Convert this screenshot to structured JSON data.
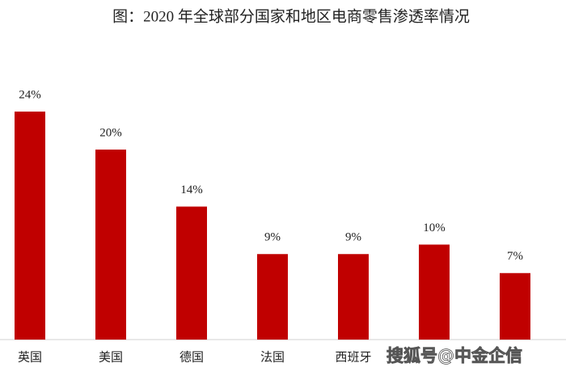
{
  "chart_data": {
    "type": "bar",
    "title": "图：2020 年全球部分国家和地区电商零售渗透率情况",
    "categories": [
      "英国",
      "美国",
      "德国",
      "法国",
      "西班牙",
      null,
      null
    ],
    "values": [
      24,
      20,
      14,
      9,
      9,
      10,
      7
    ],
    "value_labels": [
      "24%",
      "20%",
      "14%",
      "9%",
      "9%",
      "10%",
      "7%"
    ],
    "color": "#c00000",
    "watermark": "搜狐号@中金企信"
  }
}
